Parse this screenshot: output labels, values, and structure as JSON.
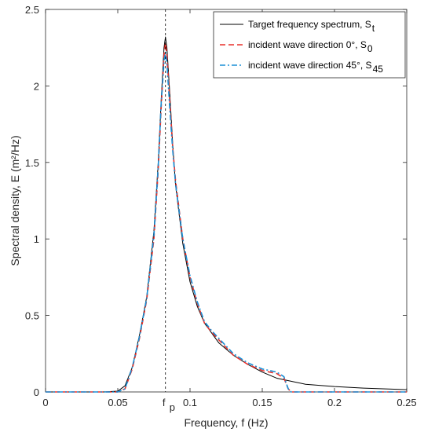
{
  "chart_data": {
    "type": "line",
    "title": "",
    "xlabel": "Frequency, f (Hz)",
    "ylabel": "Spectral density, E (m²/Hz)",
    "xlim": [
      0,
      0.25
    ],
    "ylim": [
      0,
      2.5
    ],
    "x_ticks": [
      0,
      0.05,
      0.1,
      0.15,
      0.2,
      0.25
    ],
    "x_tick_labels": [
      "0",
      "0.05",
      "0.1",
      "0.15",
      "0.2",
      "0.25"
    ],
    "y_ticks": [
      0,
      0.5,
      1,
      1.5,
      2,
      2.5
    ],
    "y_tick_labels": [
      "0",
      "0.5",
      "1",
      "1.5",
      "2",
      "2.5"
    ],
    "grid": false,
    "legend_position": "top-right",
    "annotation": {
      "text": "f",
      "subscript": "p",
      "x": 0.083
    },
    "series": [
      {
        "name": "Target frequency spectrum, S",
        "name_sub": "t",
        "color": "#000000",
        "style": "solid",
        "x": [
          0,
          0.04,
          0.05,
          0.055,
          0.06,
          0.065,
          0.07,
          0.075,
          0.078,
          0.08,
          0.082,
          0.083,
          0.084,
          0.086,
          0.088,
          0.09,
          0.095,
          0.1,
          0.105,
          0.11,
          0.12,
          0.13,
          0.14,
          0.15,
          0.16,
          0.17,
          0.18,
          0.2,
          0.22,
          0.25
        ],
        "y": [
          0,
          0,
          0.005,
          0.04,
          0.16,
          0.37,
          0.62,
          1.05,
          1.5,
          1.9,
          2.25,
          2.32,
          2.25,
          1.95,
          1.62,
          1.35,
          0.97,
          0.72,
          0.56,
          0.45,
          0.32,
          0.24,
          0.18,
          0.13,
          0.09,
          0.07,
          0.05,
          0.035,
          0.025,
          0.015
        ]
      },
      {
        "name": "incident wave direction 0°, S",
        "name_sub": "0",
        "color": "#e8302b",
        "style": "dashed",
        "x": [
          0,
          0.05,
          0.055,
          0.06,
          0.065,
          0.07,
          0.075,
          0.078,
          0.08,
          0.082,
          0.083,
          0.084,
          0.086,
          0.088,
          0.09,
          0.095,
          0.1,
          0.105,
          0.11,
          0.115,
          0.12,
          0.125,
          0.13,
          0.14,
          0.15,
          0.16,
          0.165,
          0.168,
          0.17,
          0.2,
          0.25
        ],
        "y": [
          0,
          0,
          0.02,
          0.15,
          0.35,
          0.6,
          1.0,
          1.45,
          1.85,
          2.2,
          2.28,
          2.2,
          1.9,
          1.6,
          1.38,
          1.0,
          0.75,
          0.58,
          0.45,
          0.39,
          0.34,
          0.29,
          0.24,
          0.18,
          0.14,
          0.12,
          0.09,
          0.02,
          0,
          0,
          0
        ]
      },
      {
        "name": "incident wave direction 45°, S",
        "name_sub": "45",
        "color": "#1a8fd6",
        "style": "dashdot",
        "x": [
          0,
          0.05,
          0.055,
          0.06,
          0.065,
          0.07,
          0.075,
          0.078,
          0.08,
          0.082,
          0.083,
          0.084,
          0.086,
          0.088,
          0.09,
          0.095,
          0.1,
          0.105,
          0.11,
          0.115,
          0.12,
          0.125,
          0.13,
          0.14,
          0.15,
          0.16,
          0.165,
          0.168,
          0.17,
          0.2,
          0.25
        ],
        "y": [
          0,
          0,
          0.02,
          0.16,
          0.36,
          0.61,
          1.02,
          1.47,
          1.88,
          2.15,
          2.22,
          2.15,
          1.85,
          1.58,
          1.36,
          1.0,
          0.76,
          0.59,
          0.46,
          0.4,
          0.35,
          0.3,
          0.25,
          0.19,
          0.15,
          0.13,
          0.1,
          0.02,
          0,
          0,
          0
        ]
      }
    ]
  }
}
